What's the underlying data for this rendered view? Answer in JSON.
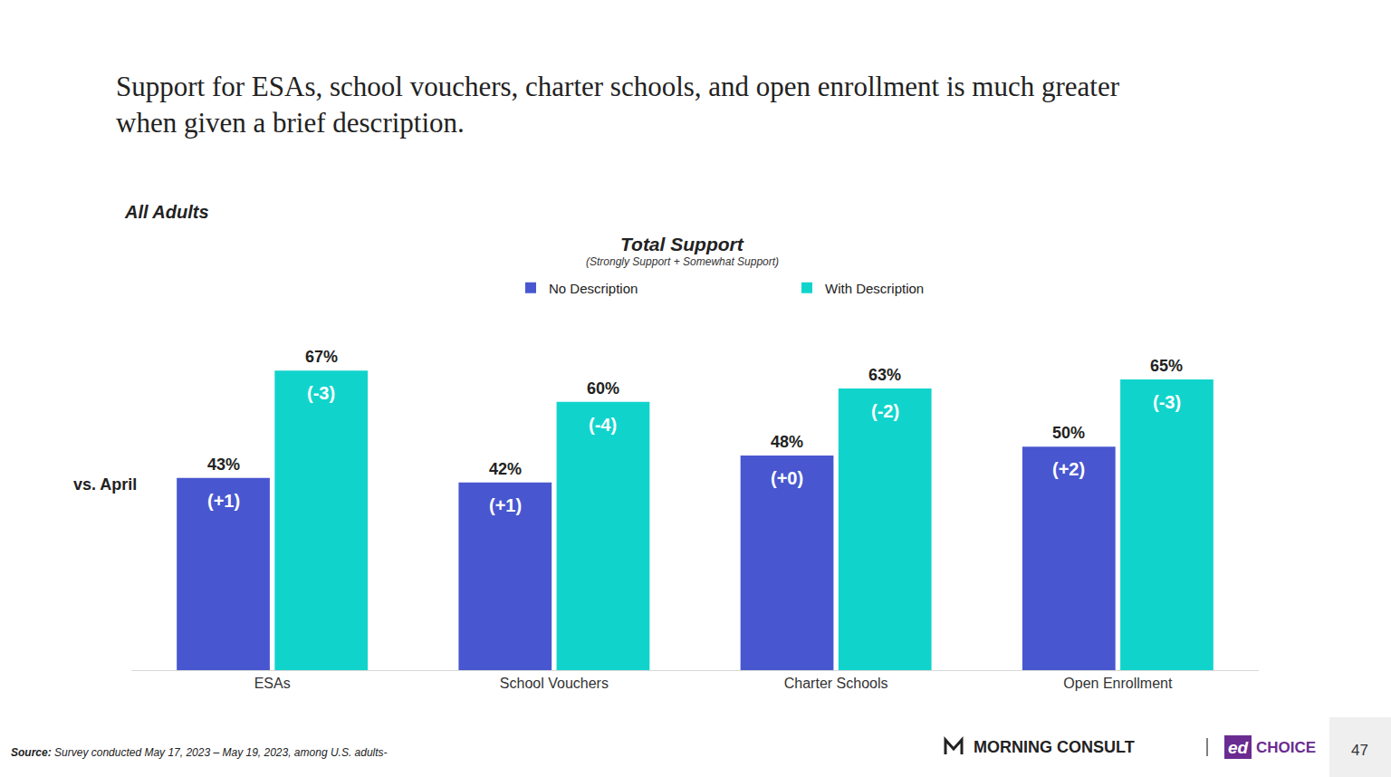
{
  "chart_data": {
    "type": "bar",
    "headline": [
      "Support for ESAs, school vouchers, charter schools, and open enrollment is much greater",
      "when given a brief description."
    ],
    "panel_label": "All Adults",
    "title": "Total Support",
    "subtitle": "(Strongly Support + Somewhat Support)",
    "categories": [
      "ESAs",
      "School Vouchers",
      "Charter Schools",
      "Open Enrollment"
    ],
    "series": [
      {
        "name": "No Description",
        "color": "#4857d0",
        "values": [
          43,
          42,
          48,
          50
        ],
        "value_labels": [
          "43%",
          "42%",
          "48%",
          "50%"
        ],
        "change_labels": [
          "(+1)",
          "(+1)",
          "(+0)",
          "(+2)"
        ]
      },
      {
        "name": "With Description",
        "color": "#10d4cc",
        "values": [
          67,
          60,
          63,
          65
        ],
        "value_labels": [
          "67%",
          "60%",
          "63%",
          "65%"
        ],
        "change_labels": [
          "(-3)",
          "(-4)",
          "(-2)",
          "(-3)"
        ]
      }
    ],
    "change_title": "vs. April",
    "ylim": [
      0,
      80
    ],
    "yticks": [
      0,
      80
    ],
    "grid": false,
    "data_labels": true,
    "tick_labels": "x",
    "legend": "top",
    "source": {
      "label": "Source:",
      "text": "Survey conducted May 17, 2023 – May 19, 2023, among U.S. adults-"
    },
    "brand": "MORNING CONSULT",
    "partner": [
      "ed",
      "CHOICE"
    ],
    "page": "47"
  }
}
